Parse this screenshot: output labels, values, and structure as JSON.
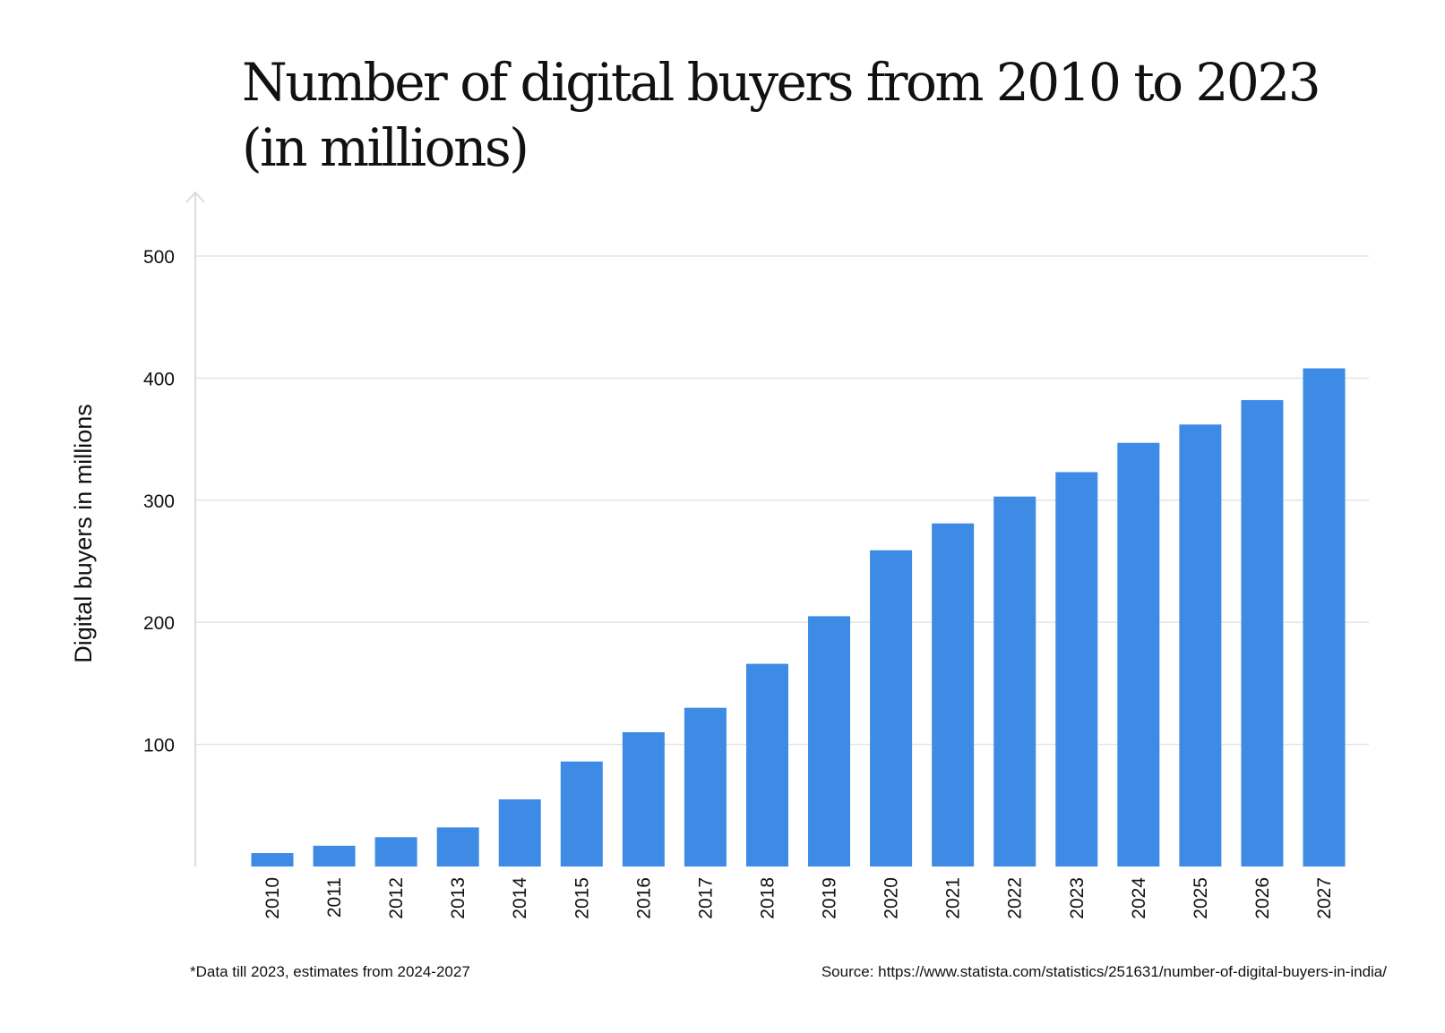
{
  "chart_data": {
    "type": "bar",
    "title_lines": [
      "Number of digital buyers from 2010 to 2023",
      "(in millions)"
    ],
    "ylabel": "Digital buyers in millions",
    "xlabel": "",
    "categories": [
      "2010",
      "2011",
      "2012",
      "2013",
      "2014",
      "2015",
      "2016",
      "2017",
      "2018",
      "2019",
      "2020",
      "2021",
      "2022",
      "2023",
      "2024",
      "2025",
      "2026",
      "2027"
    ],
    "values": [
      11,
      17,
      24,
      32,
      55,
      86,
      110,
      130,
      166,
      205,
      259,
      281,
      303,
      323,
      347,
      362,
      382,
      408
    ],
    "y_ticks": [
      100,
      200,
      300,
      400,
      500
    ],
    "y_tick_labels": [
      "100",
      "200",
      "300",
      "400",
      "500"
    ],
    "ylim": [
      0,
      540
    ],
    "grid": true,
    "bar_color": "#3e8be6"
  },
  "footnote": "*Data till 2023, estimates from 2024-2027",
  "source": "Source: https://www.statista.com/statistics/251631/number-of-digital-buyers-in-india/"
}
